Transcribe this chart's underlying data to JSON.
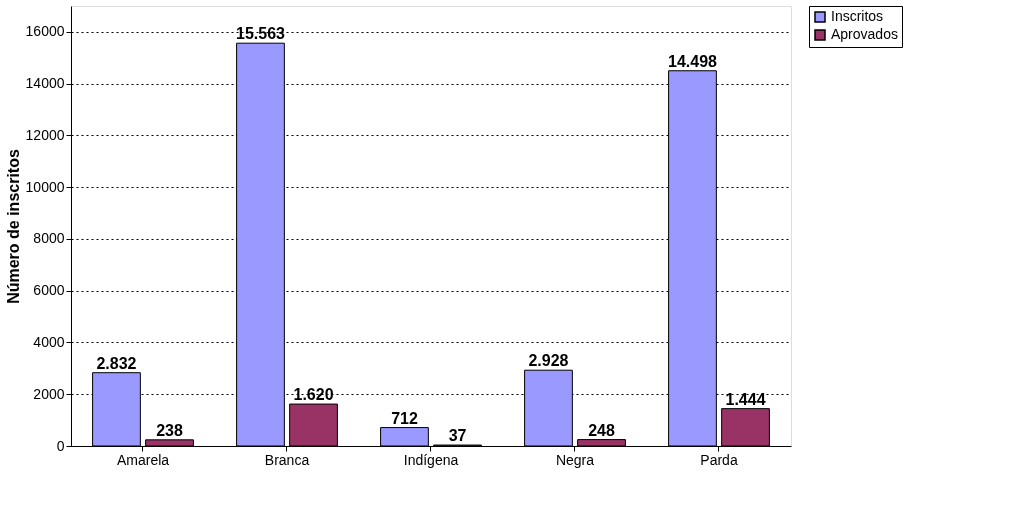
{
  "chart_data": {
    "type": "bar",
    "ylabel": "Número de inscritos",
    "categories": [
      "Amarela",
      "Branca",
      "Indígena",
      "Negra",
      "Parda"
    ],
    "series": [
      {
        "name": "Inscritos",
        "color": "#9999ff",
        "values": [
          2832,
          15563,
          712,
          2928,
          14498
        ],
        "value_labels": [
          "2.832",
          "15.563",
          "712",
          "2.928",
          "14.498"
        ]
      },
      {
        "name": "Aprovados",
        "color": "#993366",
        "values": [
          238,
          1620,
          37,
          248,
          1444
        ],
        "value_labels": [
          "238",
          "1.620",
          "37",
          "248",
          "1.444"
        ]
      }
    ],
    "ylim": [
      0,
      17000
    ],
    "yticks": [
      0,
      2000,
      4000,
      6000,
      8000,
      10000,
      12000,
      14000,
      16000
    ],
    "grid": "y",
    "legend": "right"
  }
}
